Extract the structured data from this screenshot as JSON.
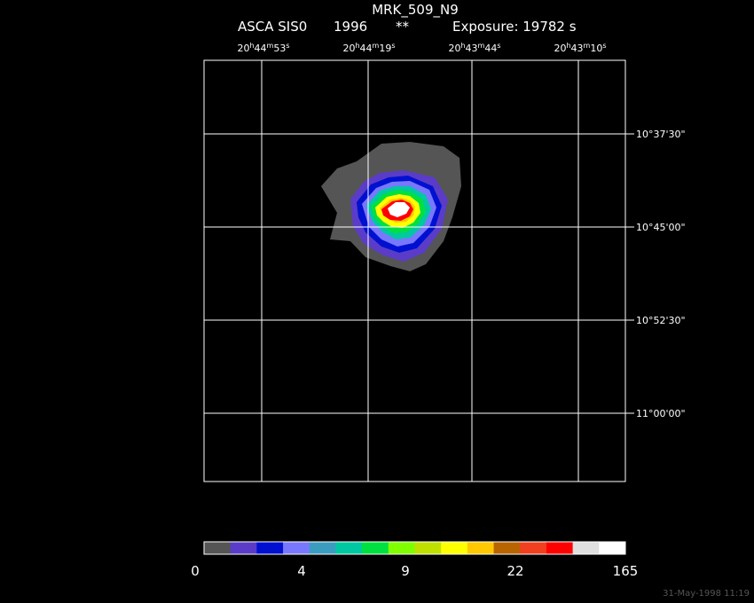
{
  "title": "MRK_509_N9",
  "subtitle": {
    "instrument": "ASCA SIS0",
    "year": "1996",
    "marker": "**",
    "exposure": "Exposure: 19782 s"
  },
  "ra_labels": [
    [
      "20",
      "h",
      "44",
      "m",
      "53",
      "s"
    ],
    [
      "20",
      "h",
      "44",
      "m",
      "19",
      "s"
    ],
    [
      "20",
      "h",
      "43",
      "m",
      "44",
      "s"
    ],
    [
      "20",
      "h",
      "43",
      "m",
      "10",
      "s"
    ]
  ],
  "dec_labels": [
    "10°37'30\"",
    "10°45'00\"",
    "10°52'30\"",
    "11°00'00\""
  ],
  "colorbar": {
    "colors": [
      "#555555",
      "#5a3cc8",
      "#0010d0",
      "#7878ff",
      "#3c9cc0",
      "#00c8a0",
      "#00e040",
      "#80ff00",
      "#c0e000",
      "#ffff00",
      "#ffc800",
      "#b86400",
      "#f04020",
      "#ff0000",
      "#e0e0e0",
      "#ffffff"
    ],
    "labels": [
      0,
      4,
      9,
      22,
      165
    ]
  },
  "timestamp": "31-May-1998 11:19"
}
